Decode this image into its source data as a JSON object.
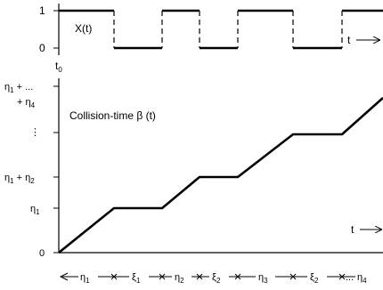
{
  "top_panel": {
    "y_tick_high": "1",
    "y_tick_low": "0",
    "signal_label": "X(t)",
    "time_label": "t",
    "origin_label": "t",
    "origin_sub": "0"
  },
  "bottom_panel": {
    "title": "Collision-time β (t)",
    "y_ticks": [
      {
        "main": "η",
        "sub": "1",
        "tail": " + ..."
      },
      {
        "main": "+ η",
        "sub": "4",
        "tail": ""
      },
      {
        "main": "⋮",
        "sub": "",
        "tail": ""
      },
      {
        "main": "η",
        "sub": "1",
        "tail": " + η"
      },
      {
        "main": "",
        "sub": "2",
        "tail": ""
      },
      {
        "main": "η",
        "sub": "1",
        "tail": ""
      },
      {
        "main": "0",
        "sub": "",
        "tail": ""
      }
    ],
    "time_label": "t"
  },
  "interval_axis": [
    {
      "main": "η",
      "sub": "1"
    },
    {
      "main": "ξ",
      "sub": "1"
    },
    {
      "main": "η",
      "sub": "2"
    },
    {
      "main": "ξ",
      "sub": "2"
    },
    {
      "main": "η",
      "sub": "3"
    },
    {
      "main": "ξ",
      "sub": "2"
    },
    {
      "main": "η",
      "sub": "4"
    }
  ],
  "interval_tail": "..."
}
